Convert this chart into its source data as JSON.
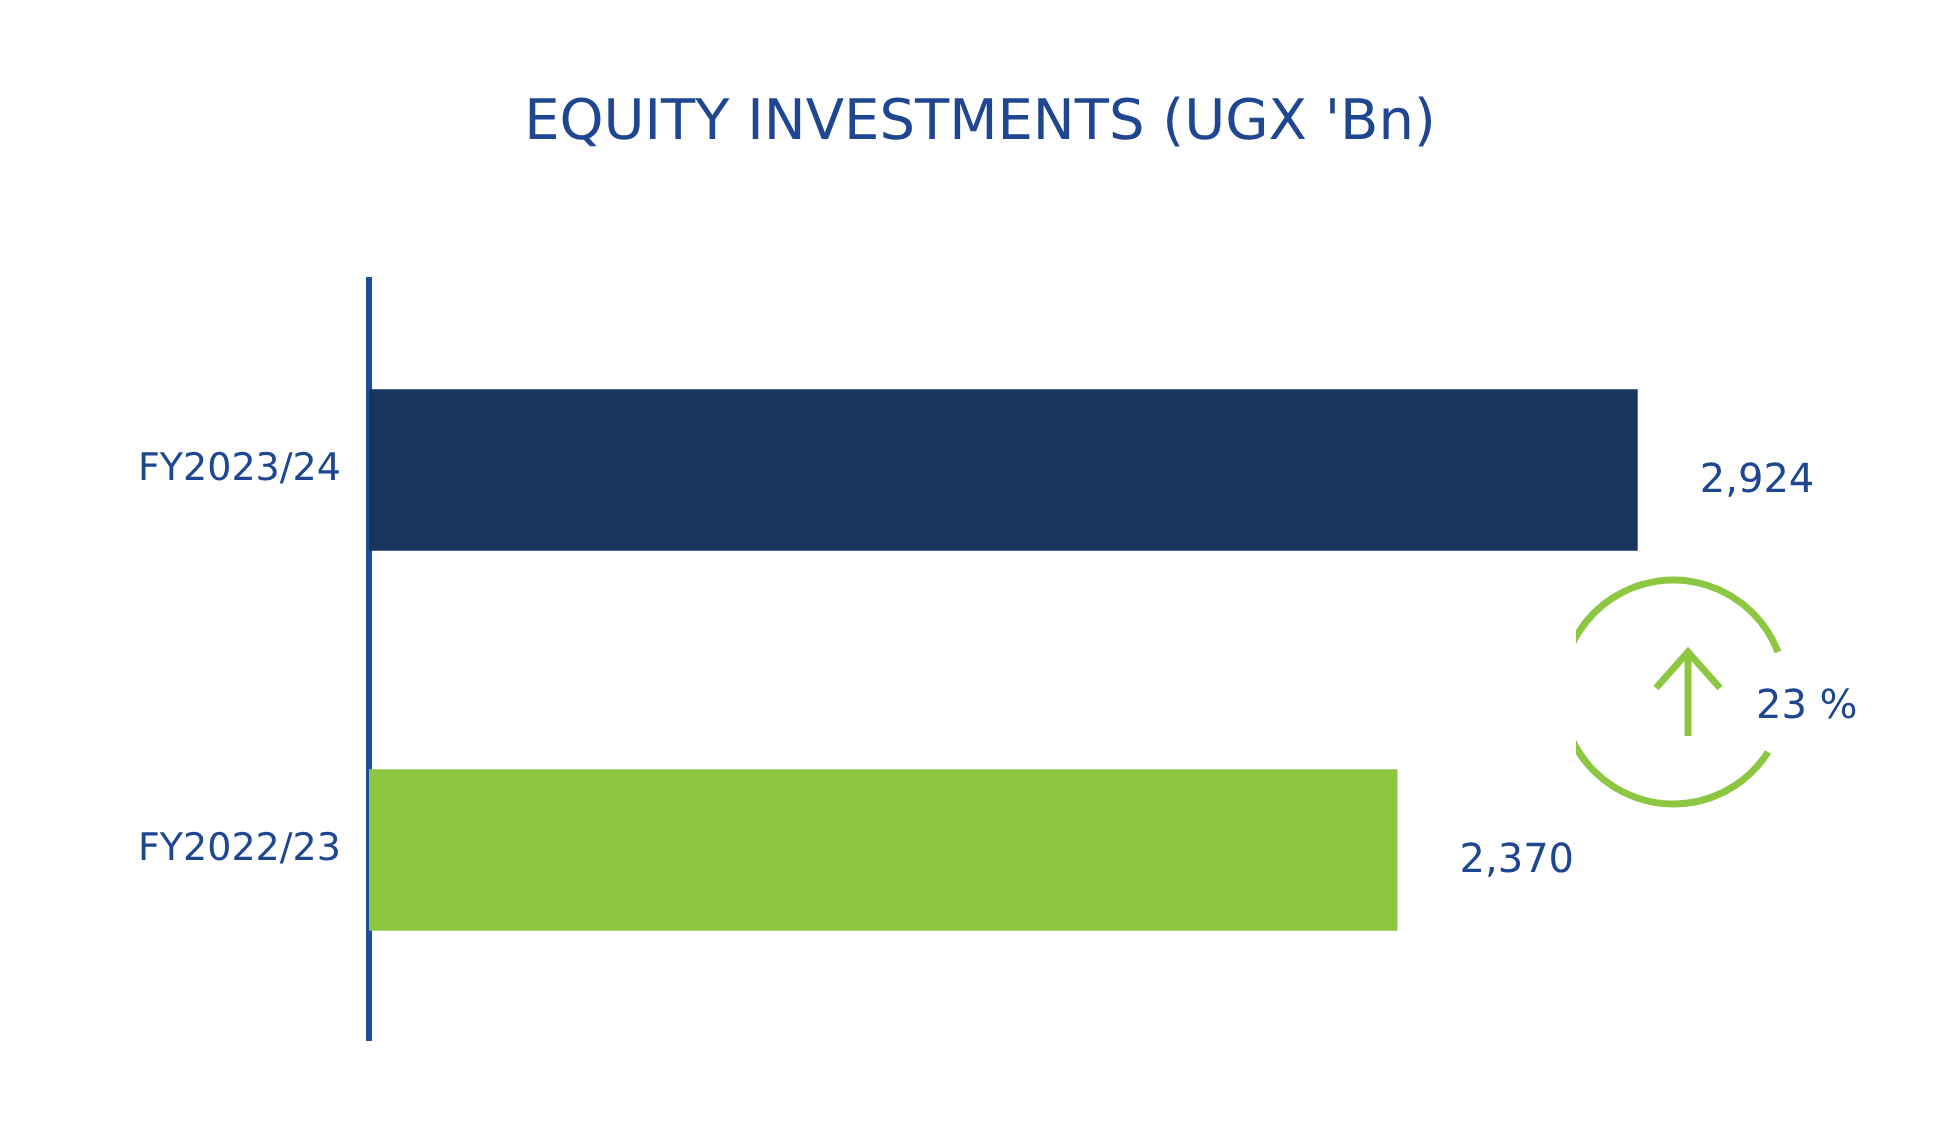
{
  "chart_data": {
    "type": "bar",
    "orientation": "horizontal",
    "title": "EQUITY INVESTMENTS (UGX 'Bn)",
    "categories": [
      "FY2023/24",
      "FY2022/23"
    ],
    "values": [
      2924,
      2370
    ],
    "colors": [
      "#17355f",
      "#8dc641"
    ],
    "value_labels": [
      "2,924",
      "2,370"
    ],
    "annotations": [
      "23 %"
    ],
    "legend": false
  }
}
